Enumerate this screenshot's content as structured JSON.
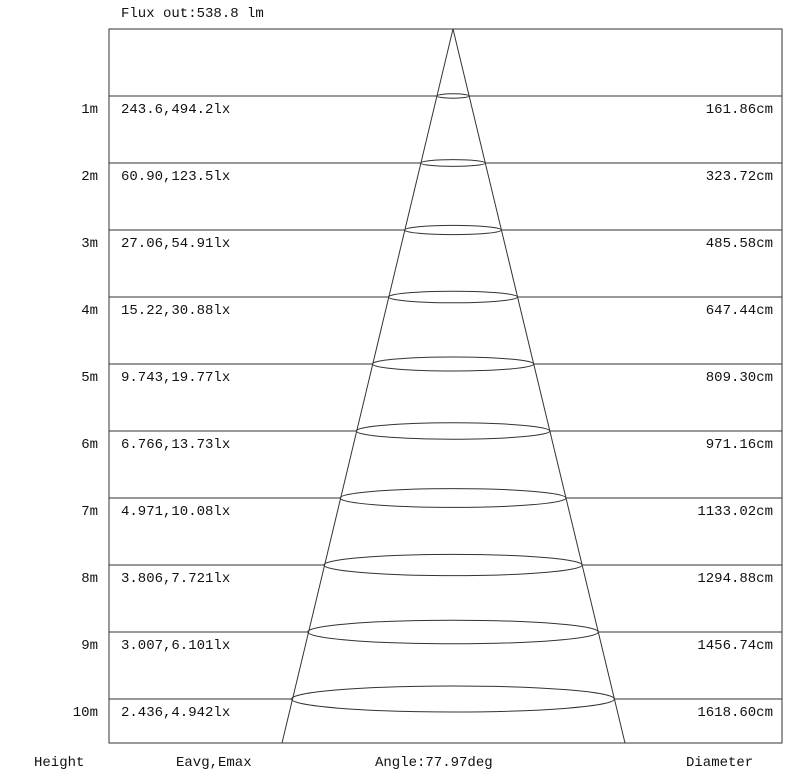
{
  "flux_label": "Flux out:538.8 lm",
  "rows": [
    {
      "height": "1m",
      "illuminance": "243.6,494.2lx",
      "diameter": "161.86cm"
    },
    {
      "height": "2m",
      "illuminance": "60.90,123.5lx",
      "diameter": "323.72cm"
    },
    {
      "height": "3m",
      "illuminance": "27.06,54.91lx",
      "diameter": "485.58cm"
    },
    {
      "height": "4m",
      "illuminance": "15.22,30.88lx",
      "diameter": "647.44cm"
    },
    {
      "height": "5m",
      "illuminance": "9.743,19.77lx",
      "diameter": "809.30cm"
    },
    {
      "height": "6m",
      "illuminance": "6.766,13.73lx",
      "diameter": "971.16cm"
    },
    {
      "height": "7m",
      "illuminance": "4.971,10.08lx",
      "diameter": "1133.02cm"
    },
    {
      "height": "8m",
      "illuminance": "3.806,7.721lx",
      "diameter": "1294.88cm"
    },
    {
      "height": "9m",
      "illuminance": "3.007,6.101lx",
      "diameter": "1456.74cm"
    },
    {
      "height": "10m",
      "illuminance": "2.436,4.942lx",
      "diameter": "1618.60cm"
    }
  ],
  "footer": {
    "height_label": "Height",
    "illuminance_label": "Eavg,Emax",
    "angle_label": "Angle:77.97deg",
    "diameter_label": "Diameter"
  },
  "line_color": "#333333"
}
